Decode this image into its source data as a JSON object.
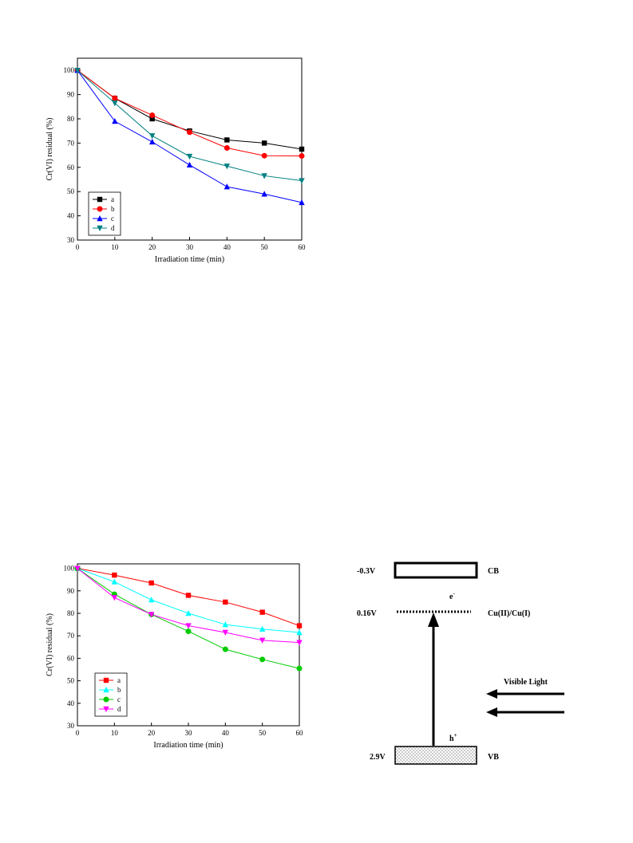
{
  "chart_data": [
    {
      "type": "line",
      "title": "",
      "xlabel": "Irradiation time (min)",
      "ylabel": "Cr(VI) residual (%)",
      "xlim": [
        0,
        60
      ],
      "ylim": [
        30,
        105
      ],
      "xticks": [
        0,
        10,
        20,
        30,
        40,
        50,
        60
      ],
      "yticks": [
        30,
        40,
        50,
        60,
        70,
        80,
        90,
        100
      ],
      "legend_position": "bottom-left",
      "x": [
        0,
        10,
        20,
        30,
        40,
        50,
        60
      ],
      "series": [
        {
          "name": "a",
          "color": "#000000",
          "marker": "square",
          "values": [
            100,
            88.5,
            80,
            75,
            71.3,
            70,
            67.5
          ]
        },
        {
          "name": "b",
          "color": "#ff0000",
          "marker": "circle",
          "values": [
            100,
            88.5,
            81.5,
            74.5,
            68,
            64.8,
            64.7
          ]
        },
        {
          "name": "c",
          "color": "#0000ff",
          "marker": "triangle-up",
          "values": [
            100,
            79,
            70.5,
            61,
            52,
            49,
            45.5
          ]
        },
        {
          "name": "d",
          "color": "#008080",
          "marker": "triangle-down",
          "values": [
            100,
            86.5,
            73,
            64.5,
            60.5,
            56.5,
            54.5
          ]
        }
      ]
    },
    {
      "type": "line",
      "title": "",
      "xlabel": "Irradiation time (min)",
      "ylabel": "Cr(VI) residual (%)",
      "xlim": [
        0,
        60
      ],
      "ylim": [
        30,
        102
      ],
      "xticks": [
        0,
        10,
        20,
        30,
        40,
        50,
        60
      ],
      "yticks": [
        30,
        40,
        50,
        60,
        70,
        80,
        90,
        100
      ],
      "legend_position": "bottom-left",
      "x": [
        0,
        10,
        20,
        30,
        40,
        50,
        60
      ],
      "series": [
        {
          "name": "a",
          "color": "#ff0000",
          "marker": "square",
          "values": [
            100,
            97,
            93.5,
            88,
            85,
            80.5,
            74.5
          ]
        },
        {
          "name": "b",
          "color": "#00ffff",
          "marker": "triangle-up",
          "values": [
            100,
            94,
            86,
            80,
            75,
            73,
            71.5
          ]
        },
        {
          "name": "c",
          "color": "#00cc00",
          "marker": "circle",
          "values": [
            100,
            88.5,
            79.5,
            72,
            64,
            59.5,
            55.5
          ]
        },
        {
          "name": "d",
          "color": "#ff00ff",
          "marker": "triangle-down",
          "values": [
            100,
            87,
            79.5,
            74.5,
            71.5,
            68,
            67
          ]
        }
      ]
    }
  ],
  "diagram": {
    "cb_potential": "-0.3V",
    "cb_label": "CB",
    "cu_potential": "0.16V",
    "cu_label": "Cu(II)/Cu(I)",
    "electron_label": "e",
    "electron_superscript": "-",
    "hole_label": "h",
    "hole_superscript": "+",
    "vb_potential": "2.9V",
    "vb_label": "VB",
    "light_label": "Visible Light"
  }
}
